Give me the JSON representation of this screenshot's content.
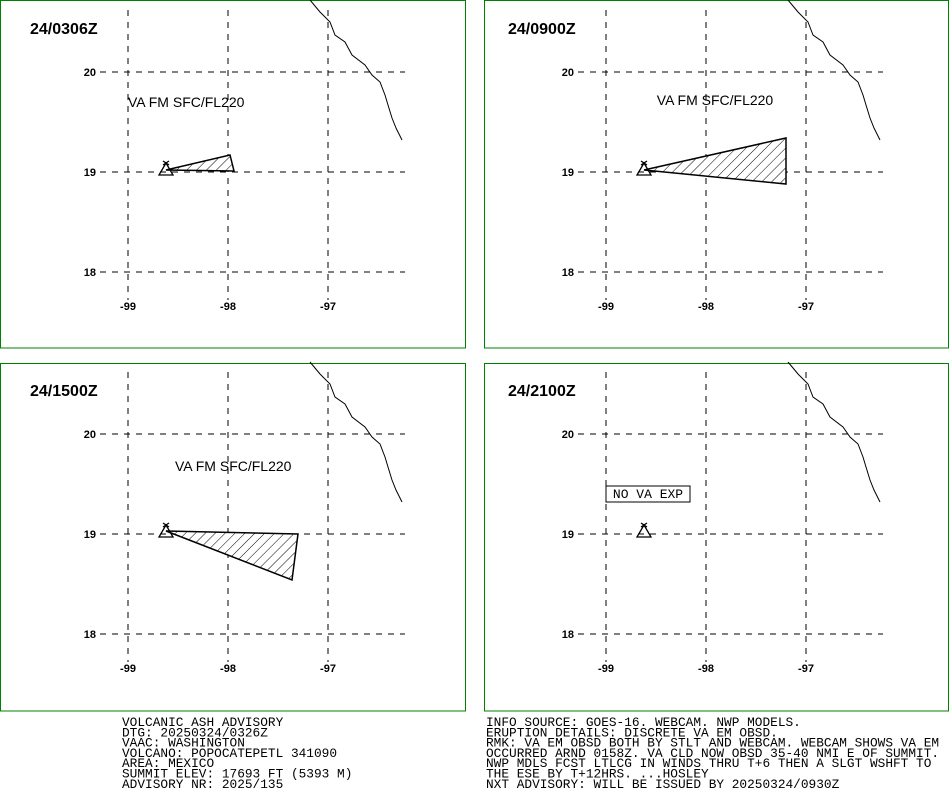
{
  "axes": {
    "xlim": [
      -100.28,
      -95.63
    ],
    "ylim": [
      17.24,
      20.72
    ],
    "xticks": [
      -99,
      -98,
      -97
    ],
    "yticks": [
      18,
      19,
      20
    ]
  },
  "volcano": {
    "lon": -98.62,
    "lat": 19.02
  },
  "panels": [
    {
      "time": "24/0306Z",
      "label": "VA FM SFC/FL220",
      "polygon": [
        [
          -98.62,
          19.02
        ],
        [
          -97.98,
          19.17
        ],
        [
          -97.94,
          19.01
        ]
      ]
    },
    {
      "time": "24/0900Z",
      "label": "VA FM SFC/FL220",
      "polygon": [
        [
          -98.62,
          19.02
        ],
        [
          -97.2,
          19.34
        ],
        [
          -97.2,
          18.88
        ]
      ]
    },
    {
      "time": "24/1500Z",
      "label": "VA FM SFC/FL220",
      "polygon": [
        [
          -98.62,
          19.03
        ],
        [
          -97.3,
          19.0
        ],
        [
          -97.36,
          18.54
        ]
      ]
    },
    {
      "time": "24/2100Z",
      "label": "NO VA EXP"
    }
  ],
  "footer": {
    "left": [
      "VOLCANIC ASH ADVISORY",
      "DTG: 20250324/0326Z",
      "VAAC: WASHINGTON",
      "VOLCANO: POPOCATEPETL 341090",
      "AREA: MEXICO",
      "SUMMIT ELEV: 17693 FT (5393 M)",
      "ADVISORY NR: 2025/135"
    ],
    "right": [
      "INFO SOURCE: GOES-16. WEBCAM. NWP MODELS.",
      "ERUPTION DETAILS: DISCRETE VA EM OBSD.",
      "RMK: VA EM OBSD BOTH BY STLT AND WEBCAM. WEBCAM SHOWS VA EM",
      "OCCURRED ARND 0158Z. VA CLD NOW OBSD 35-40 NMI E OF SUMMIT.",
      "NWP MDLS FCST LTLCG IN WINDS THRU T+6 THEN A SLGT WSHFT TO",
      "THE ESE BY T+12HRS. ...HOSLEY",
      "NXT ADVISORY: WILL BE ISSUED BY 20250324/0930Z"
    ]
  }
}
